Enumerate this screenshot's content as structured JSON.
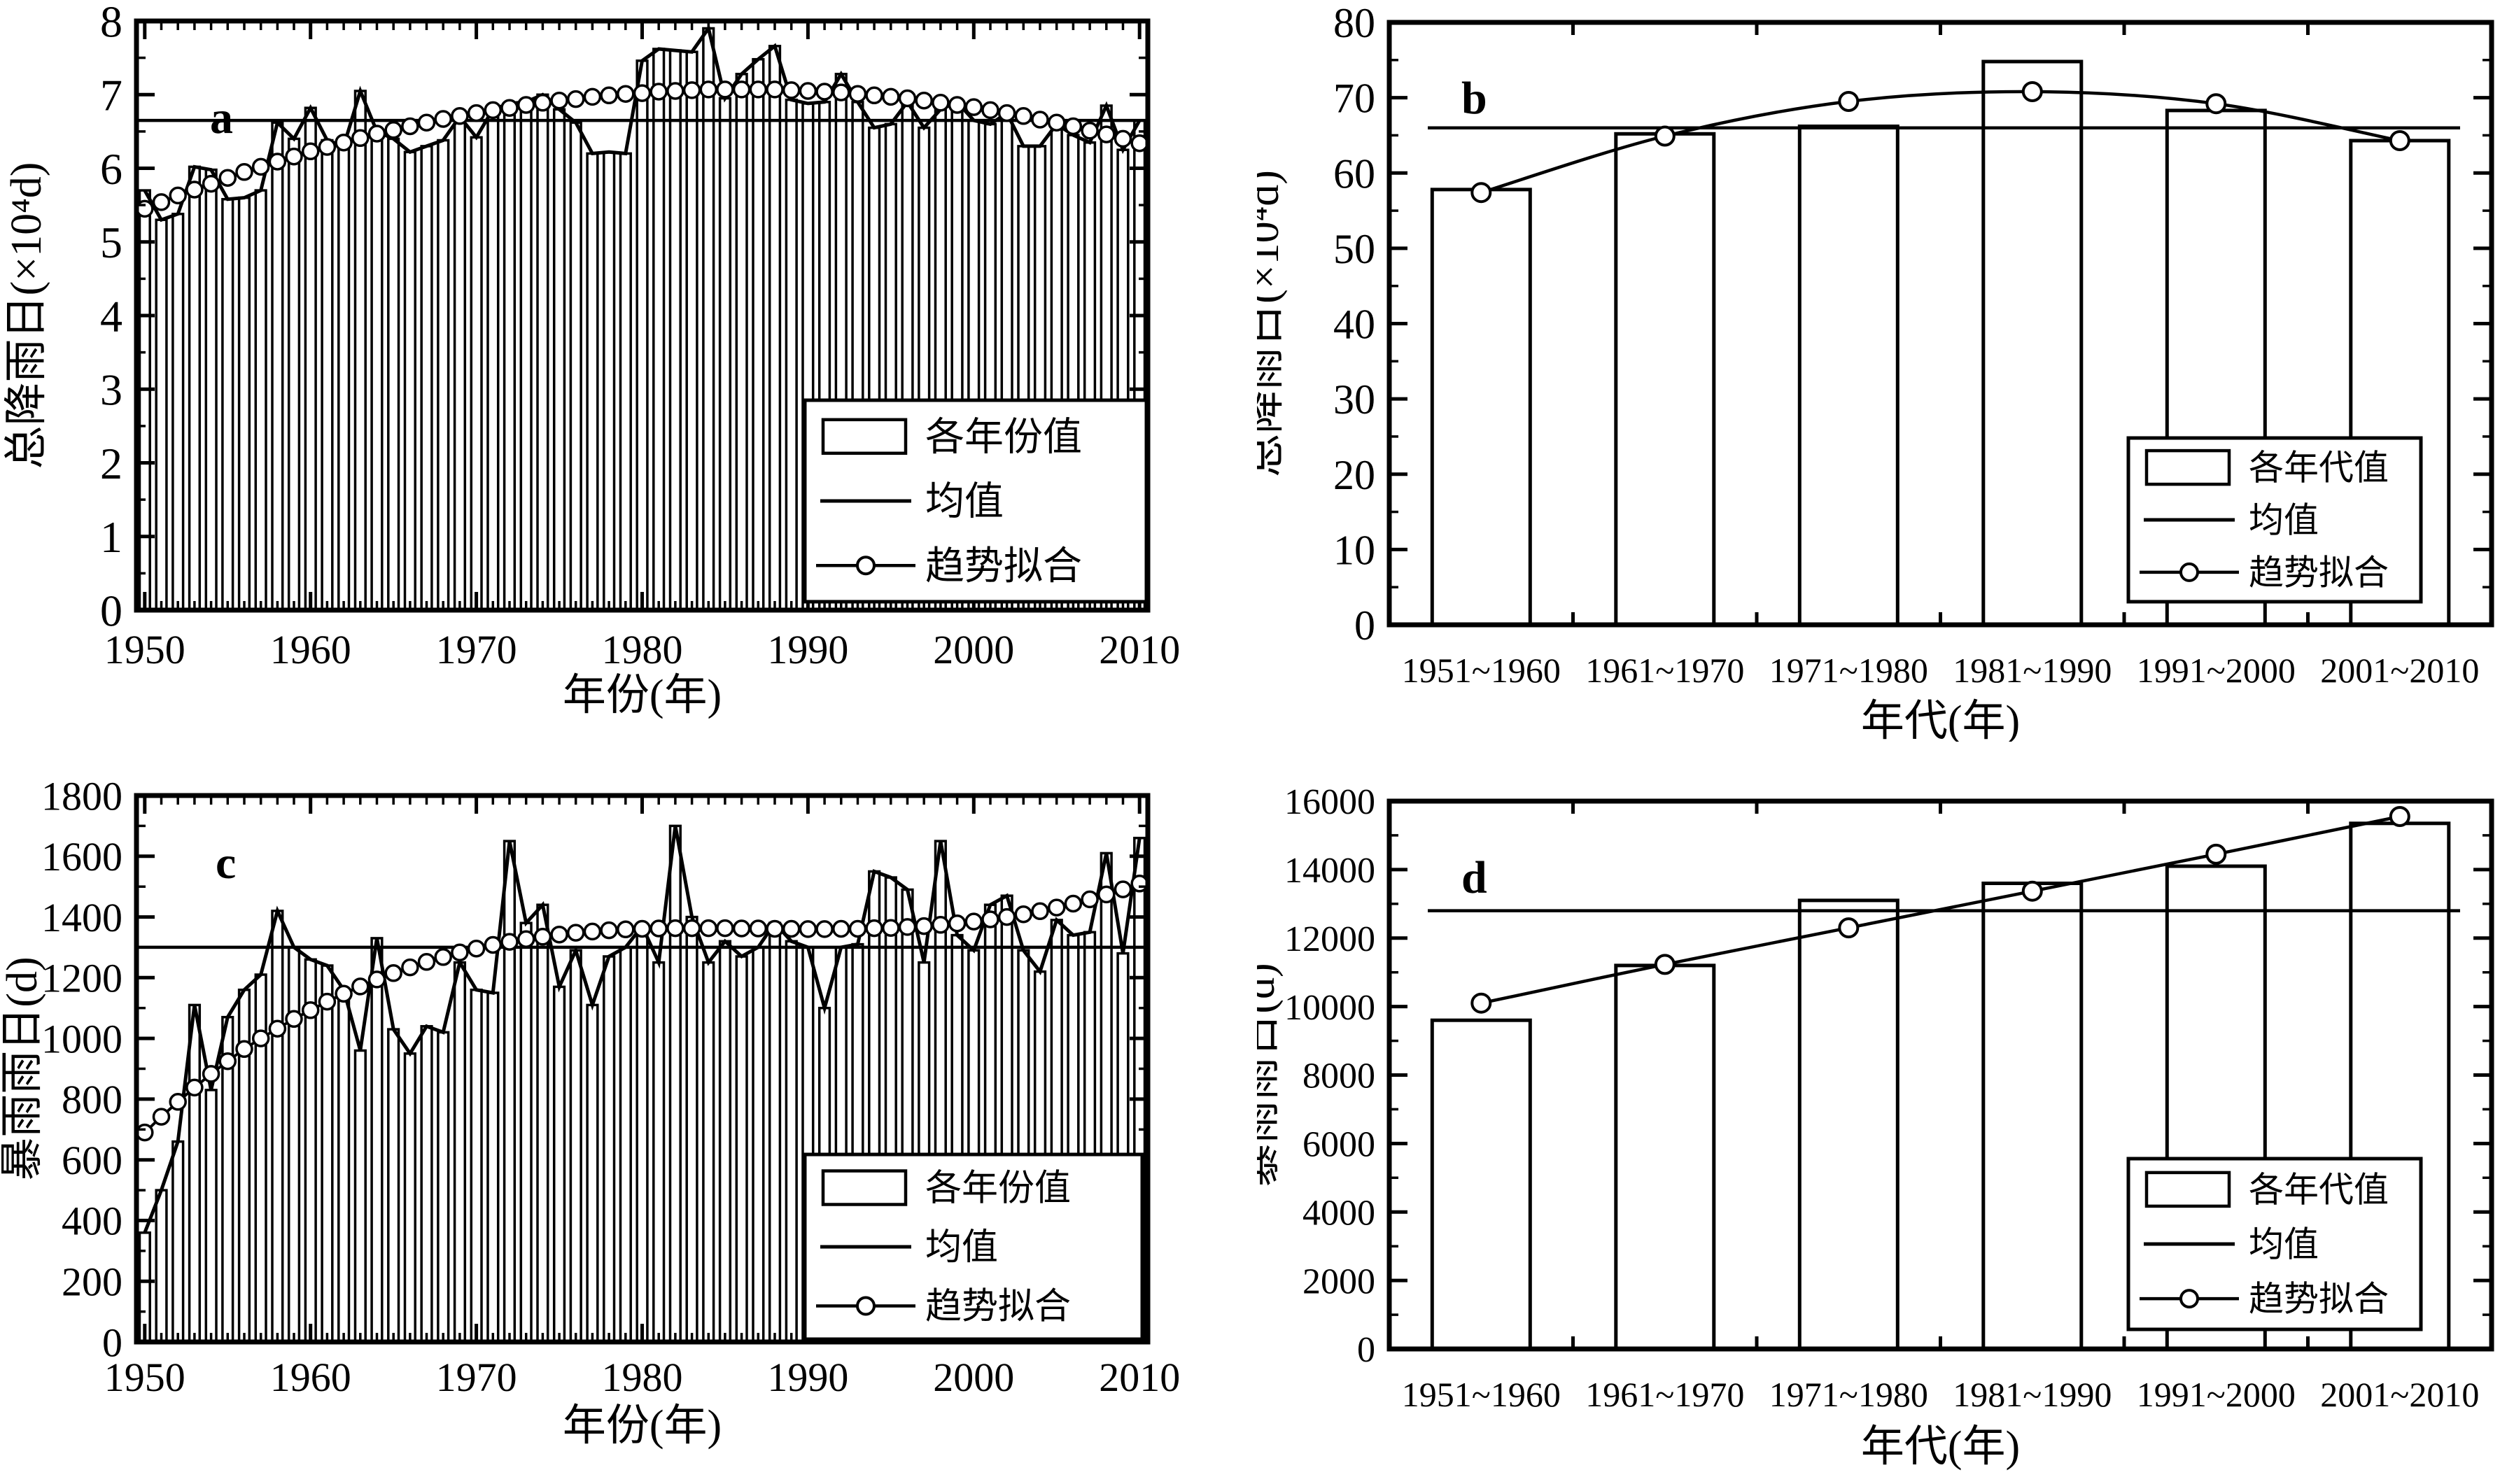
{
  "figure": {
    "background": "#ffffff",
    "ink": "#000000",
    "description_visible_text_only": true
  },
  "chart_data": [
    {
      "id": "a",
      "type": "bar",
      "panel_label": "a",
      "xlabel": "年份(年)",
      "ylabel": "总降雨日(×10⁴d)",
      "x_start": 1950,
      "x_end": 2010,
      "xticks": [
        1950,
        1960,
        1970,
        1980,
        1990,
        2000,
        2010
      ],
      "ylim": [
        0,
        8
      ],
      "ytick_step": 1,
      "yminor_step": 0.5,
      "mean": 6.65,
      "legend": [
        "各年份值",
        "均值",
        "趋势拟合"
      ],
      "connect_tops": true,
      "values": [
        5.7,
        5.3,
        5.38,
        6.02,
        5.98,
        5.58,
        5.6,
        5.7,
        6.62,
        6.4,
        6.82,
        6.38,
        6.3,
        7.05,
        6.5,
        6.4,
        6.22,
        6.3,
        6.38,
        6.7,
        6.42,
        6.8,
        6.88,
        6.9,
        7.0,
        6.8,
        6.62,
        6.2,
        6.22,
        6.2,
        7.46,
        7.62,
        7.6,
        7.58,
        7.9,
        6.95,
        7.28,
        7.48,
        7.66,
        6.93,
        6.88,
        6.9,
        7.28,
        6.9,
        6.55,
        6.6,
        6.9,
        6.55,
        6.8,
        6.9,
        6.65,
        6.6,
        6.75,
        6.3,
        6.3,
        6.6,
        6.45,
        6.35,
        6.85,
        6.25,
        6.65
      ],
      "trend": [
        5.45,
        5.54,
        5.63,
        5.71,
        5.79,
        5.87,
        5.95,
        6.02,
        6.09,
        6.16,
        6.23,
        6.29,
        6.35,
        6.41,
        6.47,
        6.52,
        6.57,
        6.62,
        6.67,
        6.71,
        6.75,
        6.79,
        6.82,
        6.86,
        6.89,
        6.92,
        6.94,
        6.97,
        6.99,
        7.01,
        7.02,
        7.04,
        7.05,
        7.06,
        7.07,
        7.07,
        7.07,
        7.07,
        7.07,
        7.06,
        7.05,
        7.04,
        7.03,
        7.01,
        6.99,
        6.97,
        6.95,
        6.92,
        6.89,
        6.86,
        6.83,
        6.79,
        6.75,
        6.71,
        6.66,
        6.62,
        6.57,
        6.51,
        6.46,
        6.4,
        6.34
      ]
    },
    {
      "id": "b",
      "type": "bar",
      "panel_label": "b",
      "xlabel": "年代(年)",
      "ylabel": "总降雨日(×10⁴d)",
      "categories": [
        "1951~1960",
        "1961~1970",
        "1971~1980",
        "1981~1990",
        "1991~2000",
        "2001~2010"
      ],
      "ylim": [
        0,
        80
      ],
      "ytick_step": 10,
      "yminor_step": 5,
      "mean": 66,
      "legend": [
        "各年代值",
        "均值",
        "趋势拟合"
      ],
      "connect_tops": false,
      "values": [
        57.8,
        65.2,
        66.2,
        74.8,
        68.3,
        64.3
      ],
      "trend": [
        57.4,
        64.9,
        69.5,
        70.8,
        69.2,
        64.3
      ]
    },
    {
      "id": "c",
      "type": "bar",
      "panel_label": "c",
      "xlabel": "年份(年)",
      "ylabel": "暴雨雨日(d)",
      "x_start": 1950,
      "x_end": 2010,
      "xticks": [
        1950,
        1960,
        1970,
        1980,
        1990,
        2000,
        2010
      ],
      "ylim": [
        0,
        1800
      ],
      "ytick_step": 200,
      "yminor_step": 100,
      "mean": 1300,
      "legend": [
        "各年份值",
        "均值",
        "趋势拟合"
      ],
      "connect_tops": true,
      "values": [
        360,
        500,
        660,
        1110,
        830,
        1070,
        1160,
        1210,
        1420,
        1300,
        1260,
        1240,
        1160,
        960,
        1330,
        1030,
        950,
        1040,
        1020,
        1250,
        1160,
        1150,
        1650,
        1380,
        1440,
        1170,
        1290,
        1110,
        1270,
        1300,
        1370,
        1250,
        1700,
        1400,
        1250,
        1320,
        1270,
        1300,
        1380,
        1320,
        1300,
        1100,
        1300,
        1310,
        1550,
        1530,
        1490,
        1250,
        1650,
        1340,
        1290,
        1440,
        1470,
        1290,
        1220,
        1390,
        1340,
        1350,
        1610,
        1280,
        1660
      ],
      "trend": [
        690,
        742,
        791,
        838,
        883,
        925,
        965,
        1000,
        1032,
        1064,
        1093,
        1121,
        1147,
        1171,
        1194,
        1215,
        1234,
        1252,
        1268,
        1283,
        1296,
        1308,
        1318,
        1327,
        1335,
        1342,
        1348,
        1352,
        1356,
        1359,
        1361,
        1362,
        1363,
        1363,
        1363,
        1363,
        1362,
        1362,
        1361,
        1361,
        1360,
        1360,
        1361,
        1361,
        1363,
        1364,
        1367,
        1370,
        1374,
        1379,
        1385,
        1392,
        1400,
        1409,
        1419,
        1431,
        1444,
        1458,
        1474,
        1491,
        1510
      ]
    },
    {
      "id": "d",
      "type": "bar",
      "panel_label": "d",
      "xlabel": "年代(年)",
      "ylabel": "暴雨雨日(d)",
      "categories": [
        "1951~1960",
        "1961~1970",
        "1971~1980",
        "1981~1990",
        "1991~2000",
        "2001~2010"
      ],
      "ylim": [
        0,
        16000
      ],
      "ytick_step": 2000,
      "yminor_step": 1000,
      "mean": 12800,
      "legend": [
        "各年代值",
        "均值",
        "趋势拟合"
      ],
      "connect_tops": false,
      "values": [
        9600,
        11200,
        13100,
        13600,
        14100,
        15350
      ],
      "trend": [
        10100,
        11230,
        12300,
        13370,
        14450,
        15550
      ]
    }
  ]
}
